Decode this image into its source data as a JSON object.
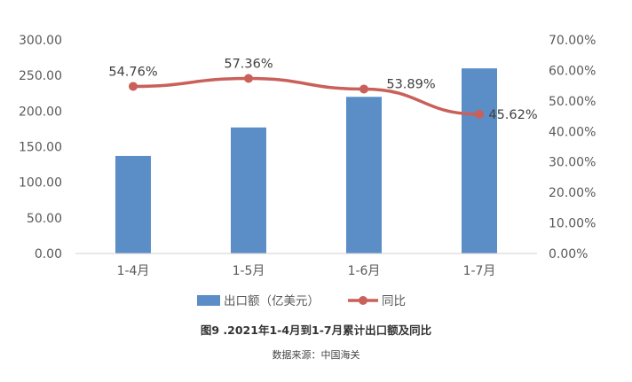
{
  "chart_data": {
    "type": "bar",
    "categories": [
      "1-4月",
      "1-5月",
      "1-6月",
      "1-7月"
    ],
    "series": [
      {
        "name": "出口额（亿美元）",
        "type": "bar",
        "axis": "left",
        "values": [
          137,
          177,
          220,
          260
        ],
        "color": "#5b8ec7"
      },
      {
        "name": "同比",
        "type": "line",
        "axis": "right",
        "values": [
          54.76,
          57.36,
          53.89,
          45.62
        ],
        "labels": [
          "54.76%",
          "57.36%",
          "53.89%",
          "45.62%"
        ],
        "color": "#c9605a"
      }
    ],
    "y_left": {
      "lim": [
        0,
        300
      ],
      "ticks": [
        "0.00",
        "50.00",
        "100.00",
        "150.00",
        "200.00",
        "250.00",
        "300.00"
      ]
    },
    "y_right": {
      "lim": [
        0,
        70
      ],
      "ticks": [
        "0.00%",
        "10.00%",
        "20.00%",
        "30.00%",
        "40.00%",
        "50.00%",
        "60.00%",
        "70.00%"
      ]
    },
    "grid": false,
    "legend_position": "bottom"
  },
  "caption": {
    "title": "图9 .2021年1-4月到1-7月累计出口额及同比",
    "source": "数据来源：中国海关"
  }
}
